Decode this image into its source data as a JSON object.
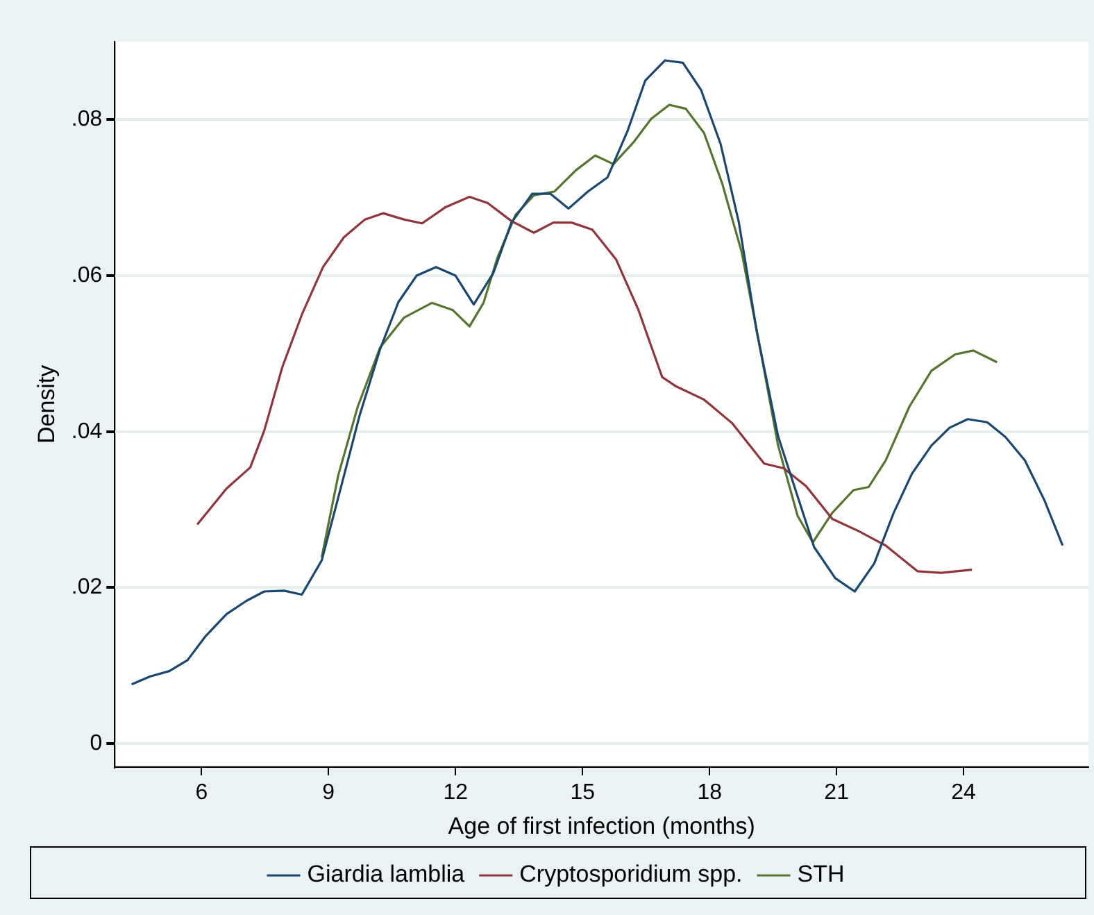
{
  "chart_data": {
    "type": "line",
    "xlabel": "Age of first infection (months)",
    "ylabel": "Density",
    "xlim": [
      3.95,
      26.95
    ],
    "xticks": [
      6,
      9,
      12,
      15,
      18,
      21,
      24
    ],
    "ylim": [
      -0.003,
      0.09
    ],
    "yticks": [
      {
        "value": 0,
        "label": "0"
      },
      {
        "value": 0.02,
        "label": ".02"
      },
      {
        "value": 0.04,
        "label": ".04"
      },
      {
        "value": 0.06,
        "label": ".06"
      },
      {
        "value": 0.08,
        "label": ".08"
      }
    ],
    "grid": "y",
    "legend": "bottom",
    "marker": "none",
    "line_style": "solid",
    "series": [
      {
        "name": "Giardia lamblia",
        "color": "#1a476f",
        "x": [
          4.35,
          4.78,
          5.24,
          5.67,
          6.1,
          6.59,
          7.06,
          7.48,
          7.95,
          8.37,
          8.84,
          9.3,
          9.73,
          10.22,
          10.65,
          11.08,
          11.54,
          12.0,
          12.43,
          12.89,
          13.32,
          13.81,
          14.24,
          14.67,
          15.13,
          15.59,
          16.06,
          16.48,
          16.95,
          17.37,
          17.8,
          18.26,
          18.69,
          19.12,
          19.62,
          20.08,
          20.47,
          20.97,
          21.43,
          21.89,
          22.35,
          22.78,
          23.24,
          23.67,
          24.1,
          24.56,
          24.99,
          25.45,
          25.91,
          26.34
        ],
        "values": [
          0.0076,
          0.0086,
          0.0093,
          0.0107,
          0.0138,
          0.0166,
          0.0183,
          0.0195,
          0.0196,
          0.0191,
          0.0235,
          0.033,
          0.042,
          0.0506,
          0.0566,
          0.06,
          0.0611,
          0.06,
          0.0563,
          0.0603,
          0.0668,
          0.0705,
          0.0705,
          0.0686,
          0.0708,
          0.0726,
          0.0785,
          0.085,
          0.0876,
          0.0873,
          0.0838,
          0.0769,
          0.0669,
          0.0527,
          0.0394,
          0.0317,
          0.0252,
          0.0212,
          0.0195,
          0.0231,
          0.0296,
          0.0346,
          0.0382,
          0.0405,
          0.0416,
          0.0412,
          0.0393,
          0.0363,
          0.0312,
          0.0254
        ]
      },
      {
        "name": "Cryptosporidium spp.",
        "color": "#90353b",
        "x": [
          5.9,
          6.59,
          7.15,
          7.48,
          7.91,
          8.37,
          8.87,
          9.36,
          9.86,
          10.29,
          10.78,
          11.21,
          11.77,
          12.33,
          12.76,
          13.32,
          13.85,
          14.31,
          14.74,
          15.23,
          15.79,
          16.32,
          16.88,
          17.21,
          17.87,
          18.53,
          19.29,
          19.75,
          20.28,
          20.9,
          21.5,
          22.16,
          22.91,
          23.47,
          24.2
        ],
        "values": [
          0.0281,
          0.0327,
          0.0354,
          0.0401,
          0.0483,
          0.055,
          0.0611,
          0.0649,
          0.0672,
          0.068,
          0.0672,
          0.0667,
          0.0688,
          0.0701,
          0.0693,
          0.067,
          0.0655,
          0.0668,
          0.0668,
          0.0659,
          0.0621,
          0.0556,
          0.047,
          0.0458,
          0.0441,
          0.0411,
          0.0359,
          0.0353,
          0.033,
          0.0288,
          0.0273,
          0.0254,
          0.0221,
          0.0219,
          0.0223
        ]
      },
      {
        "name": "STH",
        "color": "#55752f",
        "x": [
          8.84,
          9.23,
          9.69,
          10.22,
          10.78,
          11.44,
          11.93,
          12.33,
          12.66,
          12.99,
          13.42,
          13.85,
          14.34,
          14.84,
          15.3,
          15.73,
          16.22,
          16.62,
          17.05,
          17.44,
          17.87,
          18.3,
          18.76,
          19.19,
          19.62,
          20.08,
          20.44,
          20.9,
          21.4,
          21.76,
          22.16,
          22.72,
          23.24,
          23.8,
          24.23,
          24.79
        ],
        "values": [
          0.0239,
          0.0344,
          0.0432,
          0.0508,
          0.0546,
          0.0565,
          0.0556,
          0.0535,
          0.0565,
          0.0623,
          0.0678,
          0.0703,
          0.0708,
          0.0735,
          0.0754,
          0.0743,
          0.0772,
          0.0801,
          0.0819,
          0.0814,
          0.0783,
          0.0718,
          0.063,
          0.0508,
          0.0382,
          0.0292,
          0.0258,
          0.0296,
          0.0325,
          0.0329,
          0.0363,
          0.0432,
          0.0478,
          0.0499,
          0.0504,
          0.0489
        ]
      }
    ]
  }
}
